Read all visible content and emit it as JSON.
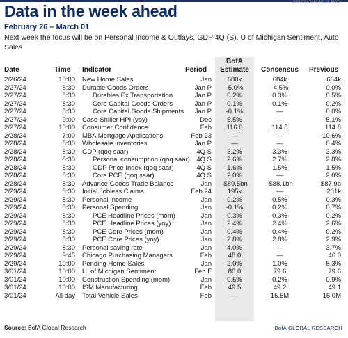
{
  "corner_text": "BofA GLOBAL RESEARCH",
  "title": "Data in the week ahead",
  "date_range": "February 26 – March 01",
  "description": "Next week the focus will be on Personal Income & Outlays, GDP 4Q (S), U of Michigan Sentiment, Auto Sales",
  "headers": {
    "date": "Date",
    "time": "Time",
    "indicator": "Indicator",
    "period": "Period",
    "bofa_line1": "BofA",
    "bofa_line2": "Estimate",
    "consensus": "Consensus",
    "previous": "Previous"
  },
  "rows": [
    {
      "date": "2/26/24",
      "time": "10:00",
      "indicator": "New Home Sales",
      "indent": false,
      "period": "Jan",
      "bofa": "680k",
      "consensus": "684k",
      "previous": "664k"
    },
    {
      "date": "2/27/24",
      "time": "8:30",
      "indicator": "Durable Goods Orders",
      "indent": false,
      "period": "Jan P",
      "bofa": "-5.0%",
      "consensus": "-4.5%",
      "previous": "0.0%"
    },
    {
      "date": "2/27/24",
      "time": "8:30",
      "indicator": "Durables Ex Transportation",
      "indent": true,
      "period": "Jan P",
      "bofa": "0.2%",
      "consensus": "0.3%",
      "previous": "0.5%"
    },
    {
      "date": "2/27/24",
      "time": "8:30",
      "indicator": "Core Capital Goods Orders",
      "indent": true,
      "period": "Jan P",
      "bofa": "0.1%",
      "consensus": "0.1%",
      "previous": "0.2%"
    },
    {
      "date": "2/27/24",
      "time": "8:30",
      "indicator": "Core Capital Goods Shipments",
      "indent": true,
      "period": "Jan P",
      "bofa": "-0.1%",
      "consensus": "—",
      "previous": "0.0%"
    },
    {
      "date": "2/27/24",
      "time": "9:00",
      "indicator": "Case-Shiller HPI (yoy)",
      "indent": false,
      "period": "Dec",
      "bofa": "5.5%",
      "consensus": "—",
      "previous": "5.1%"
    },
    {
      "date": "2/27/24",
      "time": "10:00",
      "indicator": "Consumer Confidence",
      "indent": false,
      "period": "Feb",
      "bofa": "116.0",
      "consensus": "114.8",
      "previous": "114.8"
    },
    {
      "date": "2/28/24",
      "time": "7:00",
      "indicator": "MBA Mortgage Applications",
      "indent": false,
      "period": "Feb 23",
      "bofa": "—",
      "consensus": "—",
      "previous": "-10.6%"
    },
    {
      "date": "2/28/24",
      "time": "8:30",
      "indicator": "Wholesale Inventories",
      "indent": false,
      "period": "Jan P",
      "bofa": "—",
      "consensus": "—",
      "previous": "0.4%"
    },
    {
      "date": "2/28/24",
      "time": "8:30",
      "indicator": "GDP (qoq saar)",
      "indent": false,
      "period": "4Q S",
      "bofa": "3.2%",
      "consensus": "3.3%",
      "previous": "3.3%"
    },
    {
      "date": "2/28/24",
      "time": "8:30",
      "indicator": "Personal consumption (qoq saar)",
      "indent": true,
      "period": "4Q S",
      "bofa": "2.6%",
      "consensus": "2.7%",
      "previous": "2.8%"
    },
    {
      "date": "2/28/24",
      "time": "8:30",
      "indicator": "GDP Price Index (qoq saar)",
      "indent": true,
      "period": "4Q S",
      "bofa": "1.6%",
      "consensus": "1.5%",
      "previous": "1.5%"
    },
    {
      "date": "2/28/24",
      "time": "8:30",
      "indicator": "Core PCE (qoq saar)",
      "indent": true,
      "period": "4Q S",
      "bofa": "2.0%",
      "consensus": "—",
      "previous": "2.0%"
    },
    {
      "date": "2/28/24",
      "time": "8:30",
      "indicator": "Advance Goods Trade Balance",
      "indent": false,
      "period": "Jan",
      "bofa": "-$89.5bn",
      "consensus": "-$88.1bn",
      "previous": "-$87.9b"
    },
    {
      "date": "2/29/24",
      "time": "8:30",
      "indicator": "Initial Jobless Claims",
      "indent": false,
      "period": "Feb 24",
      "bofa": "195k",
      "consensus": "—",
      "previous": "201k"
    },
    {
      "date": "2/29/24",
      "time": "8:30",
      "indicator": "Personal Income",
      "indent": false,
      "period": "Jan",
      "bofa": "0.2%",
      "consensus": "0.5%",
      "previous": "0.3%"
    },
    {
      "date": "2/29/24",
      "time": "8:30",
      "indicator": "Personal Spending",
      "indent": false,
      "period": "Jan",
      "bofa": "-0.1%",
      "consensus": "0.2%",
      "previous": "0.7%"
    },
    {
      "date": "2/29/24",
      "time": "8:30",
      "indicator": "PCE Headline Prices (mom)",
      "indent": true,
      "period": "Jan",
      "bofa": "0.3%",
      "consensus": "0.3%",
      "previous": "0.2%"
    },
    {
      "date": "2/29/24",
      "time": "8:30",
      "indicator": "PCE Headline Prices (yoy)",
      "indent": true,
      "period": "Jan",
      "bofa": "2.4%",
      "consensus": "2.4%",
      "previous": "2.6%"
    },
    {
      "date": "2/29/24",
      "time": "8:30",
      "indicator": "PCE Core Prices (mom)",
      "indent": true,
      "period": "Jan",
      "bofa": "0.4%",
      "consensus": "0.4%",
      "previous": "0.2%"
    },
    {
      "date": "2/29/24",
      "time": "8:30",
      "indicator": "PCE Core Prices (yoy)",
      "indent": true,
      "period": "Jan",
      "bofa": "2.8%",
      "consensus": "2.8%",
      "previous": "2.9%"
    },
    {
      "date": "2/29/24",
      "time": "8:30",
      "indicator": "Personal saving rate",
      "indent": false,
      "period": "Jan",
      "bofa": "4.0%",
      "consensus": "—",
      "previous": "3.7%"
    },
    {
      "date": "2/29/24",
      "time": "9:45",
      "indicator": "Chicago Purchasing Managers",
      "indent": false,
      "period": "Feb",
      "bofa": "48.0",
      "consensus": "—",
      "previous": "46.0"
    },
    {
      "date": "2/29/24",
      "time": "10:00",
      "indicator": "Pending Home Sales",
      "indent": false,
      "period": "Jan",
      "bofa": "2.0%",
      "consensus": "1.0%",
      "previous": "8.3%"
    },
    {
      "date": "3/01/24",
      "time": "10:00",
      "indicator": "U. of Michigan Sentiment",
      "indent": false,
      "period": "Feb F",
      "bofa": "80.0",
      "consensus": "79.6",
      "previous": "79.6"
    },
    {
      "date": "3/01/24",
      "time": "10:00",
      "indicator": "Construction Spending (mom)",
      "indent": false,
      "period": "Jan",
      "bofa": "0.5%",
      "consensus": "0.2%",
      "previous": "0.9%"
    },
    {
      "date": "3/01/24",
      "time": "10:00",
      "indicator": "ISM Manufacturing",
      "indent": false,
      "period": "Feb",
      "bofa": "49.5",
      "consensus": "49.2",
      "previous": "49.1"
    },
    {
      "date": "3/01/24",
      "time": "All day",
      "indicator": "Total Vehicle Sales",
      "indent": false,
      "period": "Feb",
      "bofa": "—",
      "consensus": "15.5M",
      "previous": "15.0M"
    }
  ],
  "source": {
    "label": "Source:",
    "text": " BofA Global Research"
  },
  "brand": "BofA GLOBAL RESEARCH"
}
